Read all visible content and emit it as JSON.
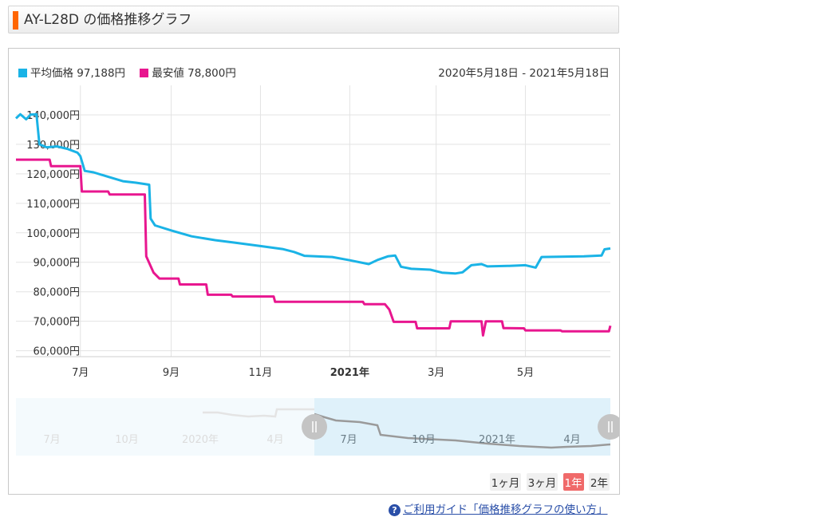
{
  "header": {
    "title": "AY-L28D の価格推移グラフ"
  },
  "legend": {
    "avg_label": "平均価格 97,188円",
    "min_label": "最安値 78,800円",
    "avg_color": "#1ab3e6",
    "min_color": "#e8168f"
  },
  "date_range": "2020年5月18日 - 2021年5月18日",
  "period_buttons": [
    {
      "label": "1ヶ月",
      "active": false
    },
    {
      "label": "3ヶ月",
      "active": false
    },
    {
      "label": "1年",
      "active": true
    },
    {
      "label": "2年",
      "active": false
    }
  ],
  "guide_link": {
    "icon": "question-icon",
    "text": "ご利用ガイド「価格推移グラフの使い方」"
  },
  "chart_data": {
    "type": "line",
    "x_ticks": [
      "7月",
      "9月",
      "11月",
      "2021年",
      "3月",
      "5月"
    ],
    "y_ticks": [
      "140,000円",
      "130,000円",
      "120,000円",
      "110,000円",
      "100,000円",
      "90,000円",
      "80,000円",
      "70,000円",
      "60,000円"
    ],
    "ylim": [
      58000,
      150000
    ],
    "grid": true,
    "series": [
      {
        "name": "平均価格",
        "color": "#1ab3e6",
        "points": [
          [
            "2020-05-18",
            138800
          ],
          [
            "2020-05-21",
            140200
          ],
          [
            "2020-05-25",
            138500
          ],
          [
            "2020-05-28",
            140100
          ],
          [
            "2020-06-01",
            140200
          ],
          [
            "2020-06-03",
            130000
          ],
          [
            "2020-06-08",
            129000
          ],
          [
            "2020-06-15",
            129300
          ],
          [
            "2020-06-22",
            128500
          ],
          [
            "2020-06-29",
            127200
          ],
          [
            "2020-07-01",
            126000
          ],
          [
            "2020-07-04",
            121000
          ],
          [
            "2020-07-10",
            120500
          ],
          [
            "2020-07-20",
            119000
          ],
          [
            "2020-07-30",
            117500
          ],
          [
            "2020-08-08",
            117000
          ],
          [
            "2020-08-17",
            116300
          ],
          [
            "2020-08-18",
            104800
          ],
          [
            "2020-08-21",
            102500
          ],
          [
            "2020-09-01",
            100800
          ],
          [
            "2020-09-15",
            98800
          ],
          [
            "2020-10-01",
            97500
          ],
          [
            "2020-10-15",
            96600
          ],
          [
            "2020-11-01",
            95500
          ],
          [
            "2020-11-16",
            94500
          ],
          [
            "2020-11-24",
            93500
          ],
          [
            "2020-12-01",
            92200
          ],
          [
            "2020-12-20",
            91800
          ],
          [
            "2021-01-01",
            90700
          ],
          [
            "2021-01-14",
            89400
          ],
          [
            "2021-01-20",
            90800
          ],
          [
            "2021-01-27",
            92000
          ],
          [
            "2021-02-01",
            92300
          ],
          [
            "2021-02-05",
            88500
          ],
          [
            "2021-02-12",
            87800
          ],
          [
            "2021-02-25",
            87500
          ],
          [
            "2021-03-05",
            86500
          ],
          [
            "2021-03-14",
            86200
          ],
          [
            "2021-03-19",
            86600
          ],
          [
            "2021-03-25",
            89000
          ],
          [
            "2021-04-01",
            89400
          ],
          [
            "2021-04-05",
            88600
          ],
          [
            "2021-04-20",
            88800
          ],
          [
            "2021-05-01",
            89000
          ],
          [
            "2021-05-08",
            88200
          ],
          [
            "2021-05-12",
            91800
          ],
          [
            "2021-06-10",
            92000
          ],
          [
            "2021-06-22",
            92300
          ],
          [
            "2021-06-24",
            94400
          ],
          [
            "2021-06-28",
            94700
          ]
        ]
      },
      {
        "name": "最安値",
        "color": "#e8168f",
        "points": [
          [
            "2020-05-18",
            124800
          ],
          [
            "2020-06-10",
            124800
          ],
          [
            "2020-06-11",
            122600
          ],
          [
            "2020-07-01",
            122600
          ],
          [
            "2020-07-02",
            114000
          ],
          [
            "2020-07-20",
            114000
          ],
          [
            "2020-07-21",
            113000
          ],
          [
            "2020-08-14",
            113000
          ],
          [
            "2020-08-15",
            92000
          ],
          [
            "2020-08-20",
            86500
          ],
          [
            "2020-08-24",
            84500
          ],
          [
            "2020-09-06",
            84500
          ],
          [
            "2020-09-07",
            82500
          ],
          [
            "2020-09-25",
            82500
          ],
          [
            "2020-09-26",
            79000
          ],
          [
            "2020-10-12",
            79000
          ],
          [
            "2020-10-13",
            78400
          ],
          [
            "2020-11-10",
            78400
          ],
          [
            "2020-11-11",
            76600
          ],
          [
            "2021-01-10",
            76600
          ],
          [
            "2021-01-11",
            75800
          ],
          [
            "2021-01-25",
            75800
          ],
          [
            "2021-01-28",
            74000
          ],
          [
            "2021-01-31",
            69800
          ],
          [
            "2021-02-15",
            69800
          ],
          [
            "2021-02-16",
            67600
          ],
          [
            "2021-03-10",
            67600
          ],
          [
            "2021-03-11",
            70000
          ],
          [
            "2021-04-01",
            70000
          ],
          [
            "2021-04-02",
            65200
          ],
          [
            "2021-04-04",
            70000
          ],
          [
            "2021-04-15",
            70000
          ],
          [
            "2021-04-16",
            67700
          ],
          [
            "2021-04-30",
            67600
          ],
          [
            "2021-05-01",
            66900
          ],
          [
            "2021-05-25",
            66900
          ],
          [
            "2021-05-26",
            66600
          ],
          [
            "2021-06-27",
            66600
          ],
          [
            "2021-06-28",
            68500
          ]
        ]
      }
    ]
  },
  "navigator": {
    "x_labels": [
      "7月",
      "10月",
      "2020年",
      "4月",
      "7月",
      "10月",
      "2021年",
      "4月"
    ]
  }
}
